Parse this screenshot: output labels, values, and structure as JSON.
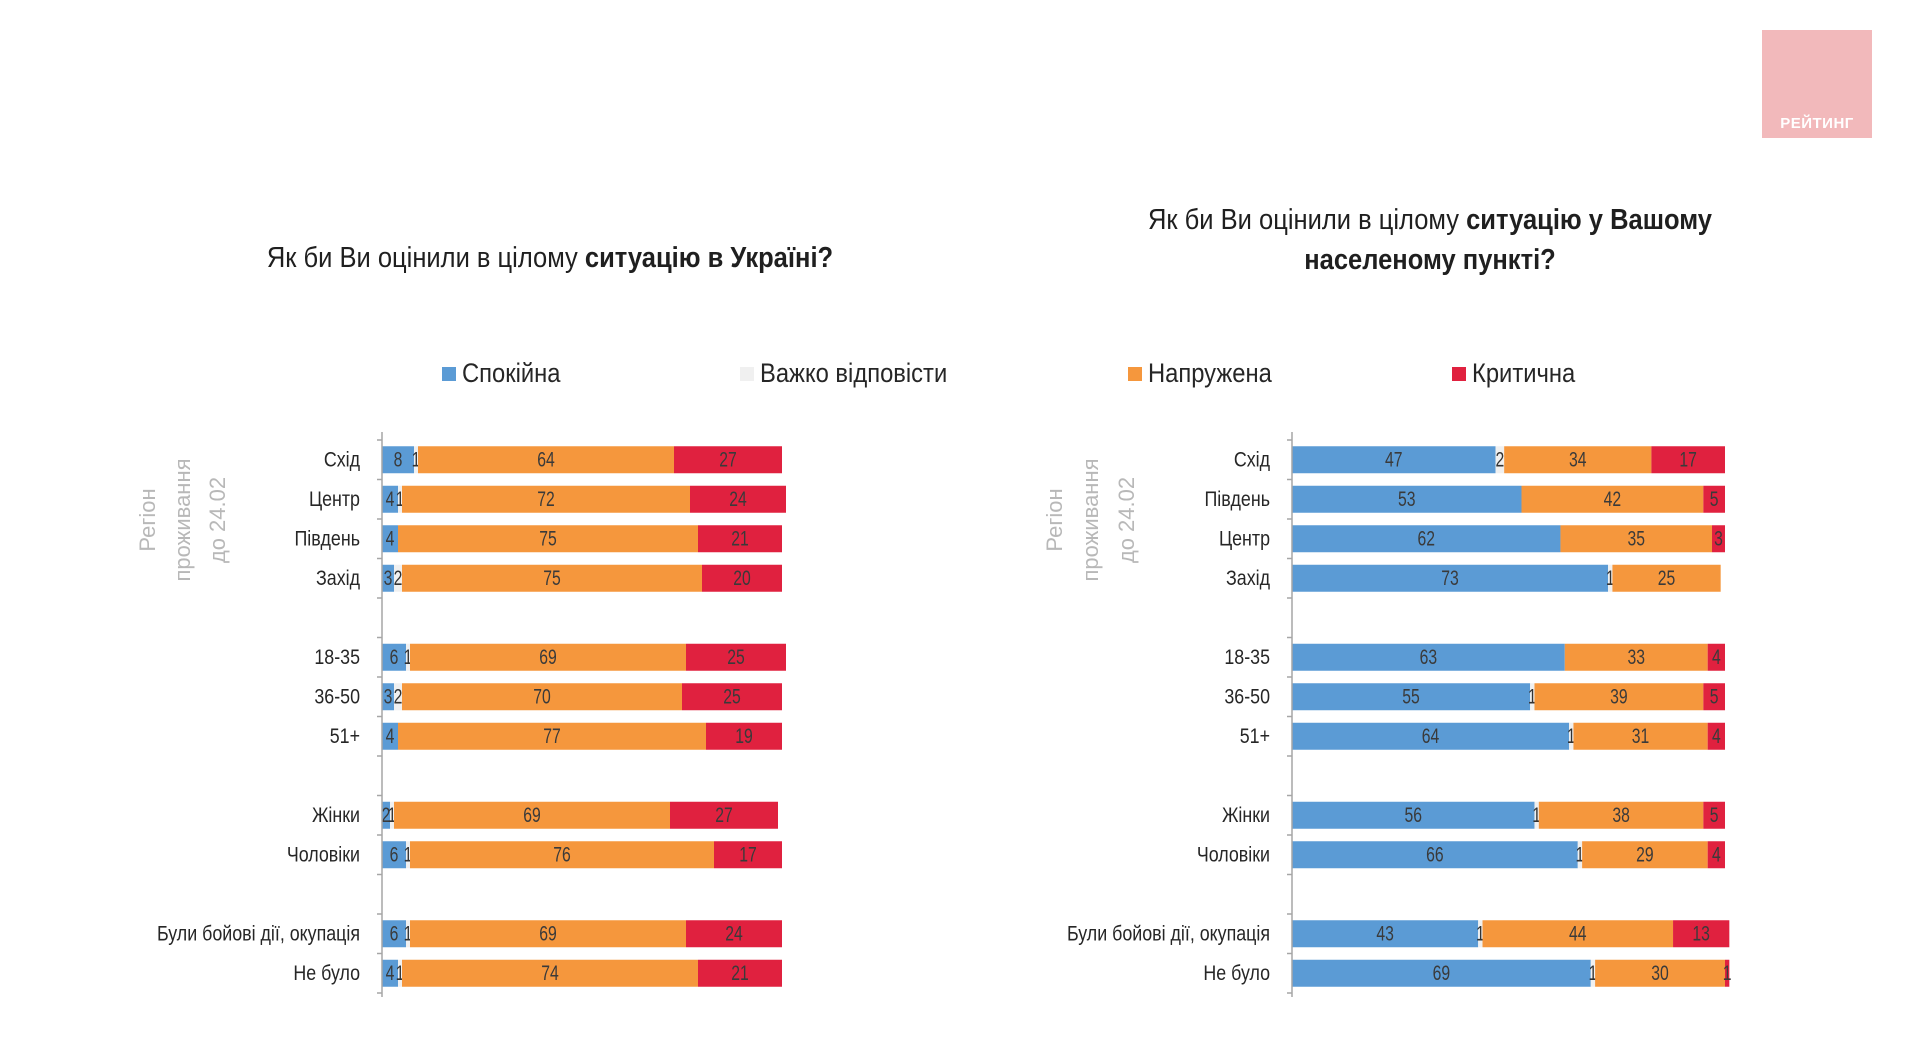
{
  "logo": {
    "text": "РЕЙТИНГ",
    "color": "#f2b9bb"
  },
  "legend": [
    {
      "key": "calm",
      "label": "Спокійна",
      "color": "#5b9bd5"
    },
    {
      "key": "hard",
      "label": "Важко відповісти",
      "color": "#f0f0f0"
    },
    {
      "key": "tense",
      "label": "Напружена",
      "color": "#f5973d"
    },
    {
      "key": "critical",
      "label": "Критична",
      "color": "#e0213f"
    }
  ],
  "chart_data": [
    {
      "type": "bar",
      "orientation": "horizontal-stacked-100",
      "title": "Як би Ви оцінили в цілому ситуацію в Україні?",
      "title_plain": "Як би Ви оцінили в цілому ",
      "title_bold": "ситуацію в Україні?",
      "group_label": [
        "Регіон",
        "проживання",
        "до 24.02"
      ],
      "xlim": [
        0,
        100
      ],
      "grid": false,
      "legend_position": "top",
      "series_names": [
        "Спокійна",
        "Важко відповісти",
        "Напружена",
        "Критична"
      ],
      "groups": [
        {
          "rows": [
            {
              "label": "Схід",
              "values": [
                8,
                1,
                64,
                27
              ]
            },
            {
              "label": "Центр",
              "values": [
                4,
                1,
                72,
                24
              ]
            },
            {
              "label": "Південь",
              "values": [
                4,
                0,
                75,
                21
              ]
            },
            {
              "label": "Захід",
              "values": [
                3,
                2,
                75,
                20
              ]
            }
          ]
        },
        {
          "rows": [
            {
              "label": "18-35",
              "values": [
                6,
                1,
                69,
                25
              ]
            },
            {
              "label": "36-50",
              "values": [
                3,
                2,
                70,
                25
              ]
            },
            {
              "label": "51+",
              "values": [
                4,
                0,
                77,
                19
              ]
            }
          ]
        },
        {
          "rows": [
            {
              "label": "Жінки",
              "values": [
                2,
                1,
                69,
                27
              ]
            },
            {
              "label": "Чоловіки",
              "values": [
                6,
                1,
                76,
                17
              ]
            }
          ]
        },
        {
          "rows": [
            {
              "label": "Були бойові дії, окупація",
              "values": [
                6,
                1,
                69,
                24
              ]
            },
            {
              "label": "Не було",
              "values": [
                4,
                1,
                74,
                21
              ]
            }
          ]
        }
      ]
    },
    {
      "type": "bar",
      "orientation": "horizontal-stacked-100",
      "title": "Як би Ви оцінили в цілому ситуацію у Вашому населеному пункті?",
      "title_plain": "Як би Ви оцінили в цілому ",
      "title_bold": "ситуацію у Вашому населеному пункті?",
      "group_label": [
        "Регіон",
        "проживання",
        "до 24.02"
      ],
      "xlim": [
        0,
        100
      ],
      "grid": false,
      "legend_position": "top",
      "series_names": [
        "Спокійна",
        "Важко відповісти",
        "Напружена",
        "Критична"
      ],
      "groups": [
        {
          "rows": [
            {
              "label": "Схід",
              "values": [
                47,
                2,
                34,
                17
              ]
            },
            {
              "label": "Південь",
              "values": [
                53,
                0,
                42,
                5
              ]
            },
            {
              "label": "Центр",
              "values": [
                62,
                0,
                35,
                3
              ]
            },
            {
              "label": "Захід",
              "values": [
                73,
                1,
                25,
                0
              ]
            }
          ]
        },
        {
          "rows": [
            {
              "label": "18-35",
              "values": [
                63,
                0,
                33,
                4
              ]
            },
            {
              "label": "36-50",
              "values": [
                55,
                1,
                39,
                5
              ]
            },
            {
              "label": "51+",
              "values": [
                64,
                1,
                31,
                4
              ]
            }
          ]
        },
        {
          "rows": [
            {
              "label": "Жінки",
              "values": [
                56,
                1,
                38,
                5
              ]
            },
            {
              "label": "Чоловіки",
              "values": [
                66,
                1,
                29,
                4
              ]
            }
          ]
        },
        {
          "rows": [
            {
              "label": "Були бойові дії, окупація",
              "values": [
                43,
                1,
                44,
                13
              ]
            },
            {
              "label": "Не було",
              "values": [
                69,
                1,
                30,
                1
              ]
            }
          ]
        }
      ]
    }
  ]
}
